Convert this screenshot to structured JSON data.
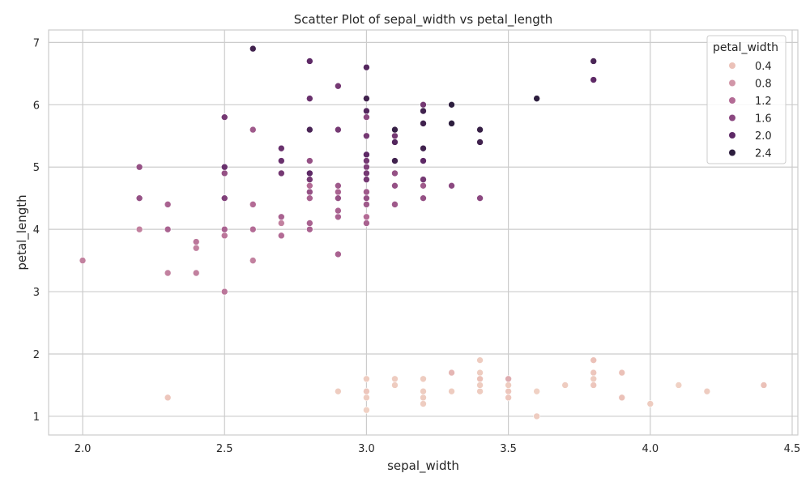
{
  "chart_data": {
    "type": "scatter",
    "title": "Scatter Plot of sepal_width vs petal_length",
    "xlabel": "sepal_width",
    "ylabel": "petal_length",
    "xlim": [
      1.88,
      4.52
    ],
    "ylim": [
      0.7,
      7.2
    ],
    "xticks": [
      2.0,
      2.5,
      3.0,
      3.5,
      4.0,
      4.5
    ],
    "yticks": [
      1,
      2,
      3,
      4,
      5,
      6,
      7
    ],
    "xtick_labels": [
      "2.0",
      "2.5",
      "3.0",
      "3.5",
      "4.0",
      "4.5"
    ],
    "ytick_labels": [
      "1",
      "2",
      "3",
      "4",
      "5",
      "6",
      "7"
    ],
    "grid": true,
    "hue": "petal_width",
    "legend": {
      "title": "petal_width",
      "placement": "top-right",
      "entries": [
        {
          "label": "0.4",
          "value": 0.4
        },
        {
          "label": "0.8",
          "value": 0.8
        },
        {
          "label": "1.2",
          "value": 1.2
        },
        {
          "label": "1.6",
          "value": 1.6
        },
        {
          "label": "2.0",
          "value": 2.0
        },
        {
          "label": "2.4",
          "value": 2.4
        }
      ]
    },
    "colors": {
      "0.4": "#ebc1b8",
      "0.8": "#d196a8",
      "1.2": "#b36b95",
      "1.6": "#8b4880",
      "2.0": "#5e2966",
      "2.4": "#2d1e3e"
    },
    "points": [
      [
        3.5,
        1.4,
        0.2
      ],
      [
        3.0,
        1.4,
        0.2
      ],
      [
        3.2,
        1.3,
        0.2
      ],
      [
        3.1,
        1.5,
        0.2
      ],
      [
        3.6,
        1.4,
        0.2
      ],
      [
        3.9,
        1.7,
        0.4
      ],
      [
        3.4,
        1.4,
        0.3
      ],
      [
        3.4,
        1.5,
        0.2
      ],
      [
        2.9,
        1.4,
        0.2
      ],
      [
        3.1,
        1.5,
        0.1
      ],
      [
        3.7,
        1.5,
        0.2
      ],
      [
        3.4,
        1.6,
        0.2
      ],
      [
        3.0,
        1.4,
        0.1
      ],
      [
        3.0,
        1.1,
        0.1
      ],
      [
        4.0,
        1.2,
        0.2
      ],
      [
        4.4,
        1.5,
        0.4
      ],
      [
        3.9,
        1.3,
        0.4
      ],
      [
        3.5,
        1.4,
        0.3
      ],
      [
        3.8,
        1.7,
        0.3
      ],
      [
        3.8,
        1.5,
        0.3
      ],
      [
        3.4,
        1.7,
        0.2
      ],
      [
        3.7,
        1.5,
        0.4
      ],
      [
        3.6,
        1.0,
        0.2
      ],
      [
        3.3,
        1.7,
        0.5
      ],
      [
        3.4,
        1.9,
        0.2
      ],
      [
        3.0,
        1.6,
        0.2
      ],
      [
        3.4,
        1.6,
        0.4
      ],
      [
        3.5,
        1.5,
        0.2
      ],
      [
        3.4,
        1.4,
        0.2
      ],
      [
        3.2,
        1.6,
        0.2
      ],
      [
        3.1,
        1.6,
        0.2
      ],
      [
        3.4,
        1.5,
        0.4
      ],
      [
        4.1,
        1.5,
        0.1
      ],
      [
        4.2,
        1.4,
        0.2
      ],
      [
        3.1,
        1.5,
        0.2
      ],
      [
        3.2,
        1.2,
        0.2
      ],
      [
        3.5,
        1.3,
        0.2
      ],
      [
        3.6,
        1.4,
        0.1
      ],
      [
        3.0,
        1.3,
        0.2
      ],
      [
        3.4,
        1.5,
        0.2
      ],
      [
        3.5,
        1.3,
        0.3
      ],
      [
        2.3,
        1.3,
        0.3
      ],
      [
        3.2,
        1.3,
        0.2
      ],
      [
        3.5,
        1.6,
        0.6
      ],
      [
        3.8,
        1.9,
        0.4
      ],
      [
        3.0,
        1.4,
        0.3
      ],
      [
        3.8,
        1.6,
        0.2
      ],
      [
        3.2,
        1.4,
        0.2
      ],
      [
        3.7,
        1.5,
        0.2
      ],
      [
        3.3,
        1.4,
        0.2
      ],
      [
        3.2,
        4.7,
        1.4
      ],
      [
        3.2,
        4.5,
        1.5
      ],
      [
        3.1,
        4.9,
        1.5
      ],
      [
        2.3,
        4.0,
        1.3
      ],
      [
        2.8,
        4.6,
        1.5
      ],
      [
        2.8,
        4.5,
        1.3
      ],
      [
        3.3,
        4.7,
        1.6
      ],
      [
        2.4,
        3.3,
        1.0
      ],
      [
        2.9,
        4.6,
        1.3
      ],
      [
        2.7,
        3.9,
        1.4
      ],
      [
        2.0,
        3.5,
        1.0
      ],
      [
        3.0,
        4.2,
        1.5
      ],
      [
        2.2,
        4.0,
        1.0
      ],
      [
        2.9,
        4.7,
        1.4
      ],
      [
        2.9,
        3.6,
        1.3
      ],
      [
        3.1,
        4.4,
        1.4
      ],
      [
        3.0,
        4.5,
        1.5
      ],
      [
        2.7,
        4.1,
        1.0
      ],
      [
        2.2,
        4.5,
        1.5
      ],
      [
        2.5,
        3.9,
        1.1
      ],
      [
        3.2,
        4.8,
        1.8
      ],
      [
        2.8,
        4.0,
        1.3
      ],
      [
        2.5,
        4.9,
        1.5
      ],
      [
        2.8,
        4.7,
        1.2
      ],
      [
        2.9,
        4.3,
        1.3
      ],
      [
        3.0,
        4.4,
        1.4
      ],
      [
        2.8,
        4.8,
        1.4
      ],
      [
        3.0,
        5.0,
        1.7
      ],
      [
        2.9,
        4.5,
        1.5
      ],
      [
        2.6,
        3.5,
        1.0
      ],
      [
        2.4,
        3.8,
        1.1
      ],
      [
        2.4,
        3.7,
        1.0
      ],
      [
        2.7,
        3.9,
        1.2
      ],
      [
        2.7,
        5.1,
        1.6
      ],
      [
        3.0,
        4.5,
        1.5
      ],
      [
        3.4,
        4.5,
        1.6
      ],
      [
        3.1,
        4.7,
        1.5
      ],
      [
        2.3,
        4.4,
        1.3
      ],
      [
        3.0,
        4.1,
        1.3
      ],
      [
        2.5,
        4.0,
        1.3
      ],
      [
        2.6,
        4.4,
        1.2
      ],
      [
        3.0,
        4.6,
        1.4
      ],
      [
        2.6,
        4.0,
        1.2
      ],
      [
        2.3,
        3.3,
        1.0
      ],
      [
        2.7,
        4.2,
        1.3
      ],
      [
        3.0,
        4.2,
        1.2
      ],
      [
        2.9,
        4.2,
        1.3
      ],
      [
        2.9,
        4.3,
        1.3
      ],
      [
        2.5,
        3.0,
        1.1
      ],
      [
        2.8,
        4.1,
        1.3
      ],
      [
        3.3,
        6.0,
        2.5
      ],
      [
        2.7,
        5.1,
        1.9
      ],
      [
        3.0,
        5.9,
        2.1
      ],
      [
        2.9,
        5.6,
        1.8
      ],
      [
        3.0,
        5.8,
        2.2
      ],
      [
        3.0,
        6.6,
        2.1
      ],
      [
        2.5,
        4.5,
        1.7
      ],
      [
        2.9,
        6.3,
        1.8
      ],
      [
        2.5,
        5.8,
        1.8
      ],
      [
        3.6,
        6.1,
        2.5
      ],
      [
        3.2,
        5.1,
        2.0
      ],
      [
        2.7,
        5.3,
        1.9
      ],
      [
        3.0,
        5.5,
        2.1
      ],
      [
        2.5,
        5.0,
        2.0
      ],
      [
        2.8,
        5.1,
        2.4
      ],
      [
        3.2,
        5.3,
        2.3
      ],
      [
        3.0,
        5.5,
        1.8
      ],
      [
        3.8,
        6.7,
        2.2
      ],
      [
        2.6,
        6.9,
        2.3
      ],
      [
        2.2,
        5.0,
        1.5
      ],
      [
        3.2,
        5.7,
        2.3
      ],
      [
        2.8,
        4.9,
        2.0
      ],
      [
        2.8,
        6.7,
        2.0
      ],
      [
        2.7,
        4.9,
        1.8
      ],
      [
        3.3,
        5.7,
        2.1
      ],
      [
        3.2,
        6.0,
        1.8
      ],
      [
        2.8,
        4.8,
        1.8
      ],
      [
        3.0,
        4.9,
        1.8
      ],
      [
        2.8,
        5.6,
        2.1
      ],
      [
        3.0,
        5.8,
        1.6
      ],
      [
        2.8,
        6.1,
        1.9
      ],
      [
        3.8,
        6.4,
        2.0
      ],
      [
        2.8,
        5.6,
        2.2
      ],
      [
        2.8,
        5.1,
        1.5
      ],
      [
        2.6,
        5.6,
        1.4
      ],
      [
        3.0,
        6.1,
        2.3
      ],
      [
        3.4,
        5.6,
        2.4
      ],
      [
        3.1,
        5.5,
        1.8
      ],
      [
        3.0,
        4.8,
        1.8
      ],
      [
        3.1,
        5.4,
        2.1
      ],
      [
        3.1,
        5.6,
        2.4
      ],
      [
        3.1,
        5.1,
        2.3
      ],
      [
        2.7,
        5.1,
        1.9
      ],
      [
        3.2,
        5.9,
        2.3
      ],
      [
        3.3,
        5.7,
        2.5
      ],
      [
        3.0,
        5.2,
        2.3
      ],
      [
        2.5,
        5.0,
        1.9
      ],
      [
        3.0,
        5.2,
        2.0
      ],
      [
        3.4,
        5.4,
        2.3
      ],
      [
        3.0,
        5.1,
        1.8
      ]
    ]
  }
}
